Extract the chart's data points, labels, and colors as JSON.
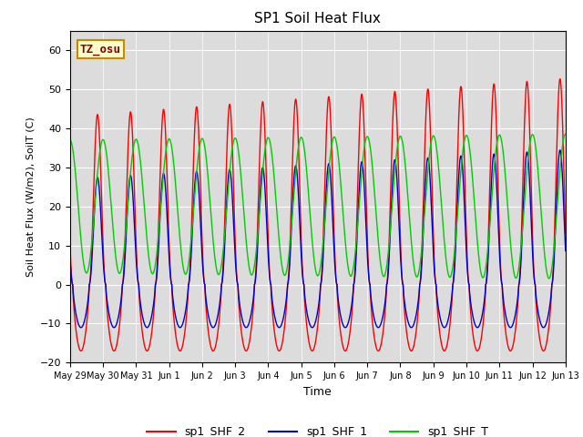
{
  "title": "SP1 Soil Heat Flux",
  "xlabel": "Time",
  "ylabel": "Soil Heat Flux (W/m2), SoilT (C)",
  "ylim": [
    -20,
    65
  ],
  "grid": true,
  "background_color": "#dcdcdc",
  "annotation_text": "TZ_osu",
  "annotation_bg": "#ffffcc",
  "annotation_border": "#cc8800",
  "annotation_text_color": "#880000",
  "line_colors": {
    "shf2": "#ff0000",
    "shf1": "#0000cc",
    "shfT": "#00cc00"
  },
  "legend_labels": [
    "sp1_SHF_2",
    "sp1_SHF_1",
    "sp1_SHF_T"
  ],
  "xtick_labels": [
    "May 29",
    "May 30",
    "May 31",
    "Jun 1",
    "Jun 2",
    "Jun 3",
    "Jun 4",
    "Jun 5",
    "Jun 6",
    "Jun 7",
    "Jun 8",
    "Jun 9",
    "Jun 10",
    "Jun 11",
    "Jun 12",
    "Jun 13"
  ],
  "n_days": 15,
  "yticks": [
    -20,
    -10,
    0,
    10,
    20,
    30,
    40,
    50,
    60
  ]
}
